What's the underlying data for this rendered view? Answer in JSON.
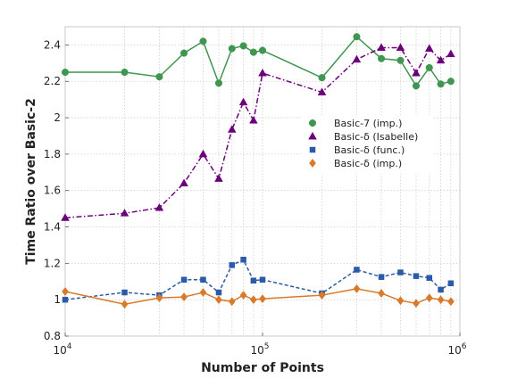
{
  "chart_data": {
    "type": "line",
    "xscale": "log",
    "xlabel": "Number of Points",
    "ylabel": "Time Ratio over Basic-2",
    "xlim": [
      10000,
      1000000
    ],
    "ylim": [
      0.8,
      2.5
    ],
    "xticks": [
      {
        "value": 10000,
        "base": "10",
        "exp": "4"
      },
      {
        "value": 100000,
        "base": "10",
        "exp": "5"
      },
      {
        "value": 1000000,
        "base": "10",
        "exp": "6"
      }
    ],
    "yticks": [
      {
        "value": 0.8,
        "label": "0.8"
      },
      {
        "value": 1.0,
        "label": "1"
      },
      {
        "value": 1.2,
        "label": "1.2"
      },
      {
        "value": 1.4,
        "label": "1.4"
      },
      {
        "value": 1.6,
        "label": "1.6"
      },
      {
        "value": 1.8,
        "label": "1.8"
      },
      {
        "value": 2.0,
        "label": "2"
      },
      {
        "value": 2.2,
        "label": "2.2"
      },
      {
        "value": 2.4,
        "label": "2.4"
      }
    ],
    "grid": "dotted",
    "legend_position": "middle-right",
    "x": [
      10000,
      20000,
      30000,
      40000,
      50000,
      60000,
      70000,
      80000,
      90000,
      100000,
      200000,
      300000,
      400000,
      500000,
      600000,
      700000,
      800000,
      900000
    ],
    "series": [
      {
        "name": "Basic-7 (imp.)",
        "color": "#3e9651",
        "marker": "circle",
        "dash": "solid",
        "values": [
          2.25,
          2.25,
          2.225,
          2.355,
          2.42,
          2.19,
          2.38,
          2.395,
          2.36,
          2.37,
          2.22,
          2.445,
          2.325,
          2.315,
          2.175,
          2.275,
          2.185,
          2.2
        ]
      },
      {
        "name": "Basic-δ (Isabelle)",
        "color": "#6b007b",
        "marker": "triangle",
        "dash": "dashdot",
        "values": [
          1.45,
          1.475,
          1.505,
          1.64,
          1.8,
          1.665,
          1.935,
          2.085,
          1.985,
          2.245,
          2.14,
          2.32,
          2.385,
          2.385,
          2.245,
          2.38,
          2.315,
          2.35
        ]
      },
      {
        "name": "Basic-δ (func.)",
        "color": "#2a5aa8",
        "marker": "square",
        "dash": "dashed",
        "values": [
          1.0,
          1.04,
          1.025,
          1.11,
          1.11,
          1.04,
          1.19,
          1.22,
          1.105,
          1.11,
          1.035,
          1.165,
          1.125,
          1.15,
          1.13,
          1.12,
          1.055,
          1.09
        ]
      },
      {
        "name": "Basic-δ (imp.)",
        "color": "#d97a2b",
        "marker": "diamond",
        "dash": "solid",
        "values": [
          1.045,
          0.975,
          1.01,
          1.015,
          1.04,
          1.0,
          0.99,
          1.025,
          1.0,
          1.005,
          1.025,
          1.06,
          1.035,
          0.995,
          0.98,
          1.01,
          1.0,
          0.99
        ]
      }
    ]
  }
}
